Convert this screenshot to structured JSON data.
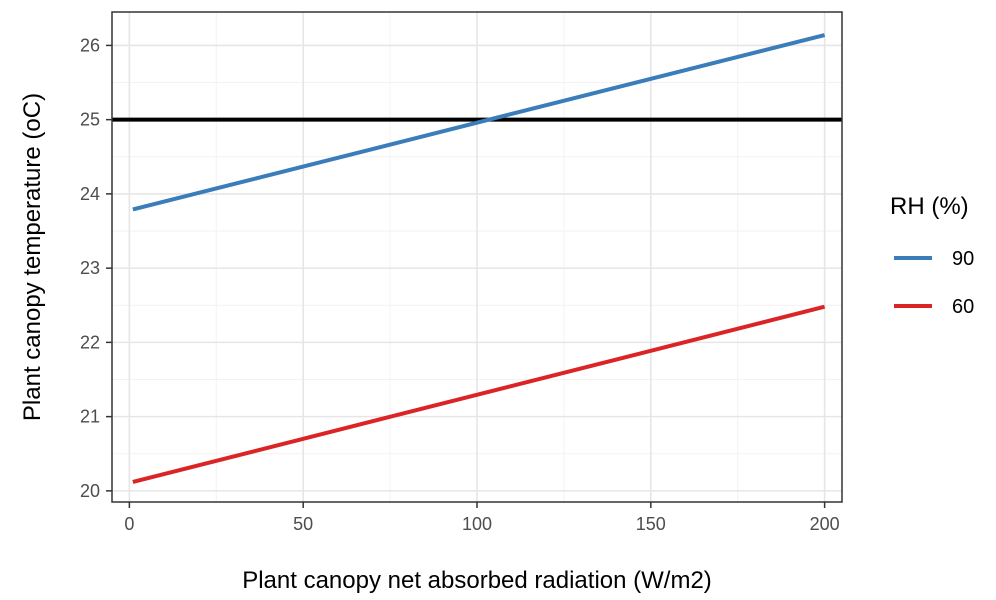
{
  "chart_data": {
    "type": "line",
    "xlabel": "Plant canopy net absorbed radiation (W/m2)",
    "ylabel": "Plant canopy temperature (oC)",
    "xlim": [
      -5,
      205
    ],
    "ylim": [
      19.85,
      26.45
    ],
    "x_ticks": [
      0,
      50,
      100,
      150,
      200
    ],
    "y_ticks": [
      20,
      21,
      22,
      23,
      24,
      25,
      26
    ],
    "x_tick_labels": [
      "0",
      "50",
      "100",
      "150",
      "200"
    ],
    "y_tick_labels": [
      "20",
      "21",
      "22",
      "23",
      "24",
      "25",
      "26"
    ],
    "grid": true,
    "legend": {
      "title": "RH (%)",
      "position": "right"
    },
    "reference_line": {
      "y": 25,
      "color": "#000000"
    },
    "series": [
      {
        "name": "90",
        "color": "#3A7DBA",
        "x": [
          1,
          200
        ],
        "y": [
          23.79,
          26.14
        ]
      },
      {
        "name": "60",
        "color": "#DB2425",
        "x": [
          1,
          200
        ],
        "y": [
          20.12,
          22.48
        ]
      }
    ]
  }
}
